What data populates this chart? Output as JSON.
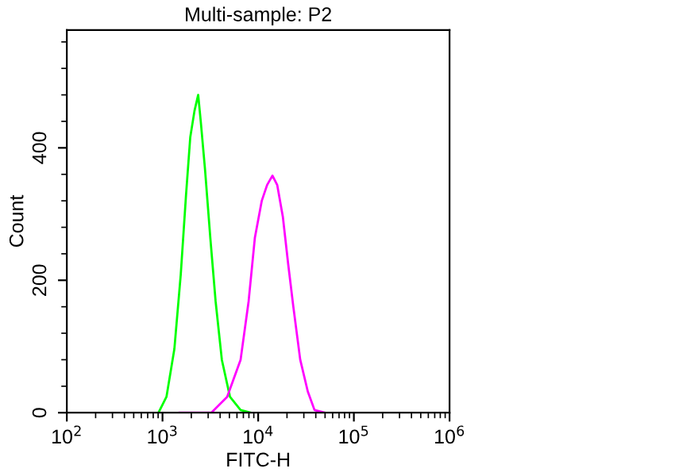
{
  "chart_data": {
    "type": "line",
    "title": "Multi-sample: P2",
    "xlabel": "FITC-H",
    "ylabel": "Count",
    "log": "x",
    "xlim": [
      100,
      1000000
    ],
    "xticks": [
      {
        "value": 100,
        "label": "10$^{2}$"
      },
      {
        "value": 1000,
        "label": "10$^{3}$"
      },
      {
        "value": 10000,
        "label": "10$^{4}$"
      },
      {
        "value": 100000,
        "label": "10$^{5}$"
      },
      {
        "value": 1000000,
        "label": "10$^{6}$"
      }
    ],
    "ylim": [
      0,
      578
    ],
    "yticks": [
      0,
      200,
      400
    ],
    "grid": false,
    "legend": false,
    "marker": "none",
    "line_style": "solid",
    "series": [
      {
        "color": "#00ff00",
        "x": [
          908,
          1100,
          1330,
          1550,
          1760,
          1950,
          2160,
          2360,
          2510,
          2780,
          3160,
          3590,
          4170,
          5070,
          6550,
          8410
        ],
        "values": [
          0,
          24,
          96,
          208,
          328,
          416,
          456,
          480,
          440,
          368,
          264,
          168,
          80,
          24,
          4,
          0
        ]
      },
      {
        "color": "#ff00ff",
        "x": [
          1510,
          3240,
          4740,
          6550,
          7940,
          9230,
          10900,
          12400,
          14100,
          15800,
          18100,
          20600,
          23300,
          27500,
          33000,
          38800,
          50100
        ],
        "values": [
          0,
          0,
          24,
          80,
          168,
          264,
          320,
          344,
          358,
          344,
          296,
          224,
          160,
          80,
          32,
          4,
          0
        ]
      }
    ]
  }
}
